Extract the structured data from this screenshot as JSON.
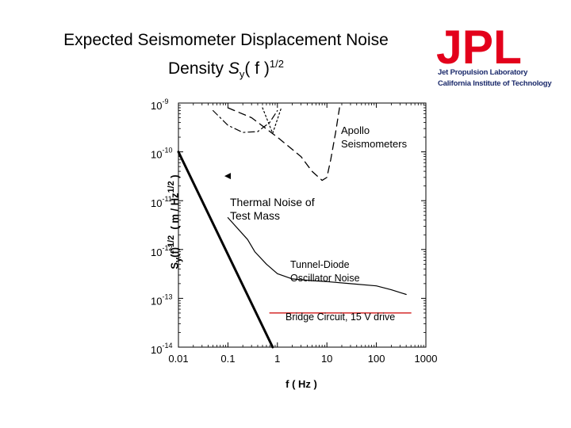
{
  "title": {
    "line1": "Expected Seismometer Displacement Noise",
    "line2_prefix": "Density ",
    "line2_symbol": "S",
    "line2_sub": "y",
    "line2_mid": "( f )",
    "line2_sup": "1/2"
  },
  "logo": {
    "text": "JPL",
    "sub1": "Jet Propulsion Laboratory",
    "sub2": "California Institute of Technology",
    "color": "#e3001b"
  },
  "chart_data": {
    "type": "line",
    "xscale": "log",
    "yscale": "log",
    "xlim": [
      0.01,
      1000
    ],
    "ylim": [
      1e-14,
      1e-09
    ],
    "xticks": [
      "0.01",
      "0.1",
      "1",
      "10",
      "100",
      "1000"
    ],
    "yticks": [
      "10-9",
      "10-10",
      "10-11",
      "10-12",
      "10-13",
      "10-14"
    ],
    "xlabel": "f ( Hz )",
    "ylabel_main": "S",
    "ylabel_sub": "y",
    "ylabel_rest": "(f)",
    "ylabel_sup1": "1/2",
    "ylabel_unit": "( m / Hz",
    "ylabel_sup2": "1/2",
    "ylabel_close": " )",
    "series": [
      {
        "name": "Thermal Noise of Test Mass",
        "style": "solid-thick",
        "color": "#000000",
        "points": [
          [
            0.01,
            1e-10
          ],
          [
            0.8,
            1e-14
          ]
        ]
      },
      {
        "name": "Tunnel-Diode Oscillator Noise",
        "style": "solid-thin",
        "color": "#000000",
        "points": [
          [
            0.1,
            4.5e-12
          ],
          [
            0.25,
            1.6e-12
          ],
          [
            0.35,
            9e-13
          ],
          [
            0.6,
            5e-13
          ],
          [
            1,
            3.2e-13
          ],
          [
            2,
            2.5e-13
          ],
          [
            5,
            2.3e-13
          ],
          [
            10,
            2.2e-13
          ],
          [
            30,
            2e-13
          ],
          [
            100,
            1.8e-13
          ],
          [
            200,
            1.5e-13
          ],
          [
            400,
            1.2e-13
          ]
        ]
      },
      {
        "name": "Bridge Circuit, 15 V drive",
        "style": "solid-thin",
        "color": "#cc0000",
        "points": [
          [
            0.7,
            5e-14
          ],
          [
            500,
            5e-14
          ]
        ]
      },
      {
        "name": "Apollo Seismometers",
        "style": "dashed",
        "color": "#000000",
        "points": [
          [
            0.1,
            8e-10
          ],
          [
            0.3,
            5e-10
          ],
          [
            1,
            2e-10
          ],
          [
            3,
            8e-11
          ],
          [
            5,
            4e-11
          ],
          [
            8,
            2.6e-11
          ],
          [
            10,
            3e-11
          ],
          [
            12,
            7e-11
          ],
          [
            15,
            2.5e-10
          ],
          [
            18,
            8e-10
          ]
        ]
      },
      {
        "name": "Apollo Seismometers (dash-dot)",
        "style": "dashdot",
        "color": "#000000",
        "points": [
          [
            0.05,
            7e-10
          ],
          [
            0.1,
            3.5e-10
          ],
          [
            0.2,
            2.5e-10
          ],
          [
            0.4,
            2.6e-10
          ],
          [
            0.7,
            4e-10
          ],
          [
            1,
            7e-10
          ]
        ]
      },
      {
        "name": "Apollo Seismometers (dotted)",
        "style": "dotted",
        "color": "#000000",
        "points": [
          [
            0.5,
            8e-10
          ],
          [
            0.8,
            2.4e-10
          ],
          [
            1.2,
            8e-10
          ]
        ]
      }
    ],
    "annotations": [
      {
        "text_line1": "Apollo",
        "text_line2": "Seismometers"
      },
      {
        "text_line1": "Thermal Noise of",
        "text_line2": "Test Mass"
      },
      {
        "text_line1": "Tunnel-Diode",
        "text_line2": "Oscillator Noise"
      },
      {
        "text_line1": "Bridge Circuit, 15 V drive",
        "text_line2": ""
      }
    ]
  }
}
